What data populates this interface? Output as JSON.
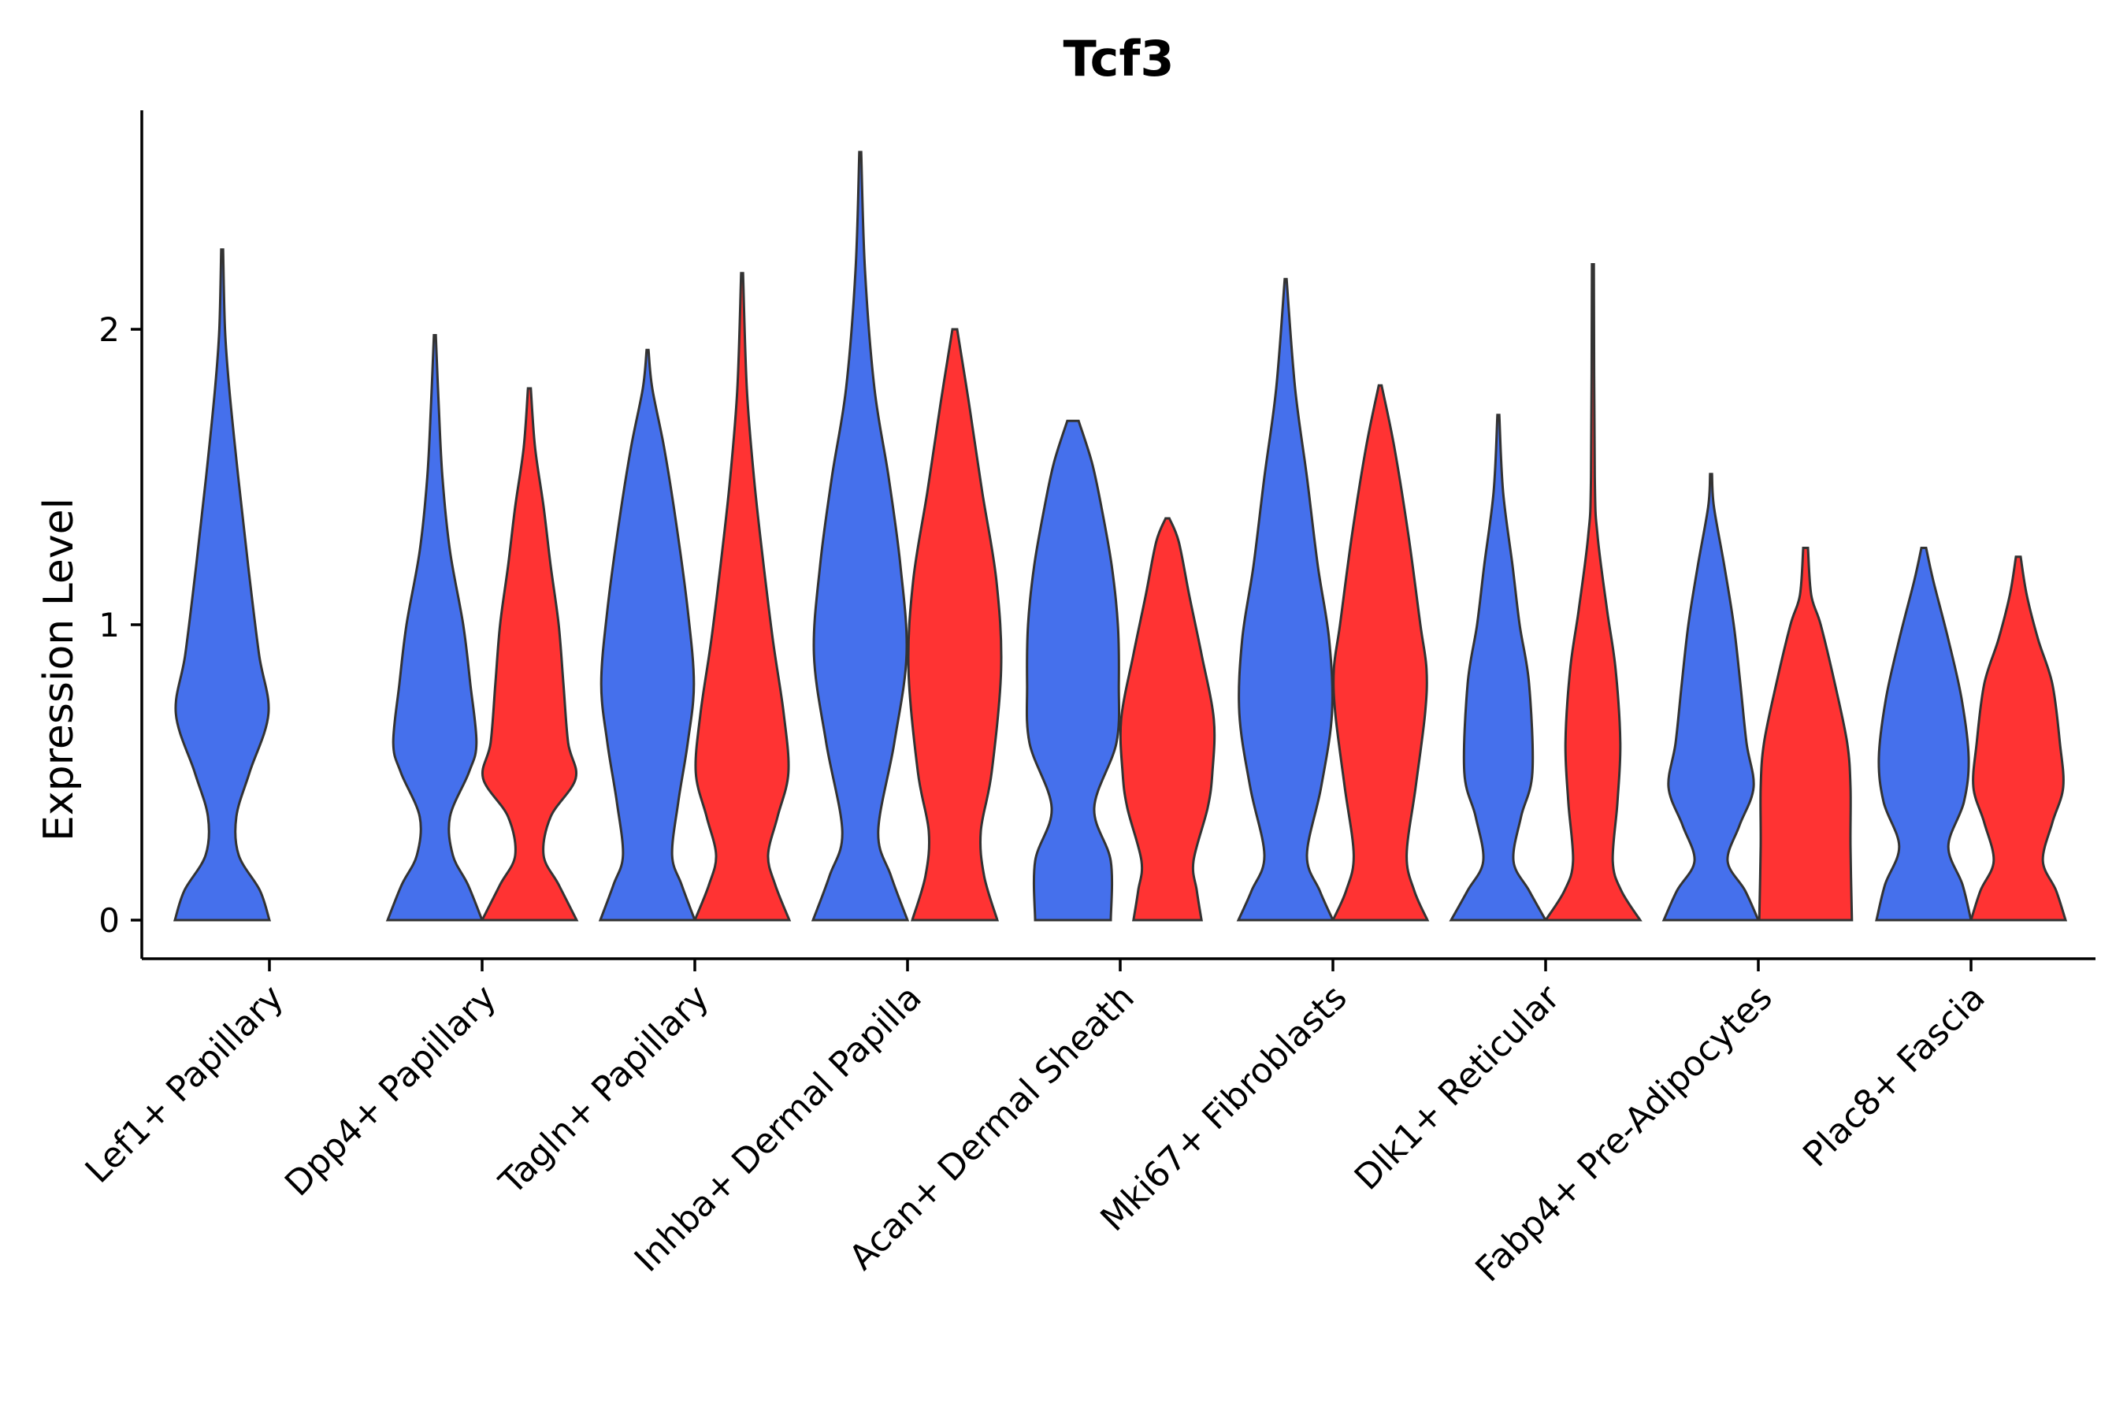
{
  "chart_data": {
    "type": "violin",
    "title": "Tcf3",
    "xlabel": "",
    "ylabel": "Expression Level",
    "ylim": [
      -0.13,
      2.75
    ],
    "yticks": [
      0,
      1,
      2
    ],
    "grid": false,
    "legend": "none",
    "series_colors": [
      "#4570EC",
      "#FF3333"
    ],
    "categories": [
      "Lef1+ Papillary",
      "Dpp4+ Papillary",
      "Tagln+ Papillary",
      "Inhba+ Dermal Papilla",
      "Acan+ Dermal Sheath",
      "Mki67+ Fibroblasts",
      "Dlk1+ Reticular",
      "Fabp4+ Pre-Adipocytes",
      "Plac8+ Fascia"
    ],
    "violins": [
      {
        "category": 0,
        "group": 0,
        "max": 2.27,
        "profile": [
          [
            0,
            1.0
          ],
          [
            0.1,
            0.8
          ],
          [
            0.22,
            0.35
          ],
          [
            0.35,
            0.3
          ],
          [
            0.5,
            0.58
          ],
          [
            0.7,
            0.98
          ],
          [
            0.9,
            0.78
          ],
          [
            1.2,
            0.55
          ],
          [
            1.5,
            0.34
          ],
          [
            1.8,
            0.15
          ],
          [
            2.0,
            0.06
          ],
          [
            2.27,
            0.02
          ]
        ]
      },
      {
        "category": 1,
        "group": 0,
        "max": 1.98,
        "profile": [
          [
            0,
            1.0
          ],
          [
            0.12,
            0.7
          ],
          [
            0.22,
            0.38
          ],
          [
            0.35,
            0.32
          ],
          [
            0.5,
            0.72
          ],
          [
            0.6,
            0.88
          ],
          [
            0.8,
            0.75
          ],
          [
            1.0,
            0.6
          ],
          [
            1.25,
            0.32
          ],
          [
            1.5,
            0.16
          ],
          [
            1.75,
            0.08
          ],
          [
            1.98,
            0.02
          ]
        ]
      },
      {
        "category": 1,
        "group": 1,
        "max": 1.8,
        "profile": [
          [
            0,
            1.0
          ],
          [
            0.12,
            0.62
          ],
          [
            0.22,
            0.3
          ],
          [
            0.35,
            0.45
          ],
          [
            0.48,
            0.98
          ],
          [
            0.6,
            0.82
          ],
          [
            0.8,
            0.72
          ],
          [
            1.0,
            0.62
          ],
          [
            1.2,
            0.45
          ],
          [
            1.4,
            0.3
          ],
          [
            1.6,
            0.12
          ],
          [
            1.8,
            0.03
          ]
        ]
      },
      {
        "category": 2,
        "group": 0,
        "max": 1.93,
        "profile": [
          [
            0,
            1.0
          ],
          [
            0.12,
            0.72
          ],
          [
            0.22,
            0.52
          ],
          [
            0.4,
            0.65
          ],
          [
            0.6,
            0.85
          ],
          [
            0.8,
            0.98
          ],
          [
            1.05,
            0.85
          ],
          [
            1.35,
            0.6
          ],
          [
            1.6,
            0.35
          ],
          [
            1.8,
            0.1
          ],
          [
            1.93,
            0.02
          ]
        ]
      },
      {
        "category": 2,
        "group": 1,
        "max": 2.19,
        "profile": [
          [
            0,
            1.0
          ],
          [
            0.12,
            0.7
          ],
          [
            0.22,
            0.55
          ],
          [
            0.35,
            0.75
          ],
          [
            0.5,
            0.98
          ],
          [
            0.7,
            0.88
          ],
          [
            0.95,
            0.65
          ],
          [
            1.25,
            0.42
          ],
          [
            1.5,
            0.25
          ],
          [
            1.8,
            0.1
          ],
          [
            2.19,
            0.02
          ]
        ]
      },
      {
        "category": 3,
        "group": 0,
        "max": 2.6,
        "profile": [
          [
            0,
            1.0
          ],
          [
            0.15,
            0.65
          ],
          [
            0.3,
            0.38
          ],
          [
            0.6,
            0.72
          ],
          [
            0.9,
            0.98
          ],
          [
            1.2,
            0.85
          ],
          [
            1.5,
            0.6
          ],
          [
            1.8,
            0.3
          ],
          [
            2.2,
            0.1
          ],
          [
            2.6,
            0.02
          ]
        ]
      },
      {
        "category": 3,
        "group": 1,
        "max": 2.0,
        "profile": [
          [
            0,
            0.9
          ],
          [
            0.15,
            0.62
          ],
          [
            0.3,
            0.55
          ],
          [
            0.5,
            0.78
          ],
          [
            0.85,
            0.98
          ],
          [
            1.15,
            0.88
          ],
          [
            1.45,
            0.58
          ],
          [
            1.75,
            0.3
          ],
          [
            2.0,
            0.05
          ]
        ]
      },
      {
        "category": 4,
        "group": 0,
        "max": 1.69,
        "profile": [
          [
            0,
            0.8
          ],
          [
            0.2,
            0.8
          ],
          [
            0.38,
            0.45
          ],
          [
            0.6,
            0.92
          ],
          [
            0.8,
            0.97
          ],
          [
            1.0,
            0.95
          ],
          [
            1.2,
            0.82
          ],
          [
            1.4,
            0.6
          ],
          [
            1.55,
            0.4
          ],
          [
            1.69,
            0.12
          ]
        ]
      },
      {
        "category": 4,
        "group": 1,
        "max": 1.36,
        "profile": [
          [
            0,
            0.72
          ],
          [
            0.1,
            0.62
          ],
          [
            0.2,
            0.55
          ],
          [
            0.38,
            0.85
          ],
          [
            0.5,
            0.95
          ],
          [
            0.68,
            0.98
          ],
          [
            0.9,
            0.72
          ],
          [
            1.1,
            0.46
          ],
          [
            1.28,
            0.24
          ],
          [
            1.36,
            0.04
          ]
        ]
      },
      {
        "category": 5,
        "group": 0,
        "max": 2.17,
        "profile": [
          [
            0,
            1.0
          ],
          [
            0.1,
            0.72
          ],
          [
            0.22,
            0.45
          ],
          [
            0.45,
            0.75
          ],
          [
            0.7,
            0.98
          ],
          [
            0.95,
            0.92
          ],
          [
            1.2,
            0.68
          ],
          [
            1.5,
            0.45
          ],
          [
            1.8,
            0.2
          ],
          [
            2.17,
            0.02
          ]
        ]
      },
      {
        "category": 5,
        "group": 1,
        "max": 1.81,
        "profile": [
          [
            0,
            1.0
          ],
          [
            0.1,
            0.72
          ],
          [
            0.22,
            0.56
          ],
          [
            0.45,
            0.75
          ],
          [
            0.7,
            0.95
          ],
          [
            0.85,
            0.98
          ],
          [
            1.0,
            0.85
          ],
          [
            1.3,
            0.6
          ],
          [
            1.6,
            0.3
          ],
          [
            1.81,
            0.03
          ]
        ]
      },
      {
        "category": 6,
        "group": 0,
        "max": 1.71,
        "profile": [
          [
            0,
            1.0
          ],
          [
            0.1,
            0.65
          ],
          [
            0.2,
            0.32
          ],
          [
            0.35,
            0.48
          ],
          [
            0.5,
            0.72
          ],
          [
            0.8,
            0.65
          ],
          [
            1.0,
            0.45
          ],
          [
            1.2,
            0.3
          ],
          [
            1.45,
            0.1
          ],
          [
            1.71,
            0.02
          ]
        ]
      },
      {
        "category": 6,
        "group": 1,
        "max": 2.22,
        "profile": [
          [
            0,
            1.0
          ],
          [
            0.1,
            0.6
          ],
          [
            0.2,
            0.42
          ],
          [
            0.4,
            0.52
          ],
          [
            0.6,
            0.58
          ],
          [
            0.85,
            0.48
          ],
          [
            1.05,
            0.3
          ],
          [
            1.3,
            0.1
          ],
          [
            1.5,
            0.04
          ],
          [
            2.22,
            0.02
          ]
        ]
      },
      {
        "category": 7,
        "group": 0,
        "max": 1.51,
        "profile": [
          [
            0,
            1.0
          ],
          [
            0.1,
            0.72
          ],
          [
            0.2,
            0.35
          ],
          [
            0.32,
            0.6
          ],
          [
            0.45,
            0.9
          ],
          [
            0.6,
            0.75
          ],
          [
            0.8,
            0.62
          ],
          [
            1.0,
            0.48
          ],
          [
            1.2,
            0.28
          ],
          [
            1.4,
            0.06
          ],
          [
            1.51,
            0.02
          ]
        ]
      },
      {
        "category": 7,
        "group": 1,
        "max": 1.26,
        "profile": [
          [
            0,
            0.98
          ],
          [
            0.25,
            0.95
          ],
          [
            0.45,
            0.95
          ],
          [
            0.6,
            0.88
          ],
          [
            0.8,
            0.62
          ],
          [
            1.0,
            0.32
          ],
          [
            1.1,
            0.12
          ],
          [
            1.26,
            0.05
          ]
        ]
      },
      {
        "category": 8,
        "group": 0,
        "max": 1.26,
        "profile": [
          [
            0,
            1.0
          ],
          [
            0.12,
            0.82
          ],
          [
            0.25,
            0.52
          ],
          [
            0.4,
            0.85
          ],
          [
            0.55,
            0.95
          ],
          [
            0.75,
            0.8
          ],
          [
            0.95,
            0.52
          ],
          [
            1.15,
            0.2
          ],
          [
            1.26,
            0.05
          ]
        ]
      },
      {
        "category": 8,
        "group": 1,
        "max": 1.23,
        "profile": [
          [
            0,
            1.0
          ],
          [
            0.1,
            0.8
          ],
          [
            0.2,
            0.52
          ],
          [
            0.33,
            0.72
          ],
          [
            0.45,
            0.95
          ],
          [
            0.6,
            0.88
          ],
          [
            0.8,
            0.72
          ],
          [
            0.95,
            0.42
          ],
          [
            1.1,
            0.18
          ],
          [
            1.23,
            0.05
          ]
        ]
      }
    ]
  }
}
